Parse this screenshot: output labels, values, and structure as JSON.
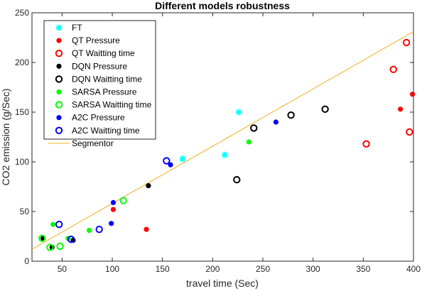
{
  "chart_data": {
    "type": "scatter",
    "title": "Different models robustness",
    "xlabel": "travel time (Sec)",
    "ylabel": "CO2 emission (g/Sec)",
    "xlim": [
      20,
      400
    ],
    "ylim": [
      0,
      250
    ],
    "xticks": [
      50,
      100,
      150,
      200,
      250,
      300,
      350,
      400
    ],
    "yticks": [
      0,
      50,
      100,
      150,
      200,
      250
    ],
    "grid": false,
    "legend_position": "top-left",
    "series": [
      {
        "name": "FT",
        "color": "#00ffff",
        "marker": "asterisk",
        "x": [
          170,
          212,
          226
        ],
        "y": [
          103,
          107,
          150
        ]
      },
      {
        "name": "QT Pressure",
        "color": "#ff0000",
        "marker": "filled-circle",
        "x": [
          101,
          134,
          387,
          399
        ],
        "y": [
          52,
          32,
          153,
          168
        ]
      },
      {
        "name": "QT Waitting time",
        "color": "#ff0000",
        "marker": "open-circle",
        "x": [
          353,
          380,
          393,
          396
        ],
        "y": [
          118,
          193,
          220,
          130
        ]
      },
      {
        "name": "DQN Pressure",
        "color": "#000000",
        "marker": "filled-circle",
        "x": [
          31,
          40,
          61,
          136
        ],
        "y": [
          23,
          14,
          21,
          76
        ]
      },
      {
        "name": "DQN Waitting time",
        "color": "#000000",
        "marker": "open-circle",
        "x": [
          224,
          241,
          278,
          312
        ],
        "y": [
          82,
          134,
          147,
          153
        ]
      },
      {
        "name": "SARSA Pressure",
        "color": "#00ff00",
        "marker": "filled-circle",
        "x": [
          41,
          56,
          77,
          236
        ],
        "y": [
          37,
          23,
          31,
          120
        ]
      },
      {
        "name": "SARSA Waitting time",
        "color": "#00ff00",
        "marker": "open-circle",
        "x": [
          30,
          38,
          48,
          111
        ],
        "y": [
          23,
          14,
          15,
          61
        ]
      },
      {
        "name": "A2C Pressure",
        "color": "#0000ff",
        "marker": "filled-circle",
        "x": [
          99,
          101,
          158,
          263
        ],
        "y": [
          38,
          59,
          97,
          140
        ]
      },
      {
        "name": "A2C Waitting time",
        "color": "#0000ff",
        "marker": "open-circle",
        "x": [
          47,
          59,
          87,
          154
        ],
        "y": [
          37,
          22,
          32,
          101
        ]
      },
      {
        "name": "Segmentor",
        "color": "#edb120",
        "marker": "line",
        "x": [
          20,
          400
        ],
        "y": [
          12,
          231
        ]
      }
    ]
  }
}
